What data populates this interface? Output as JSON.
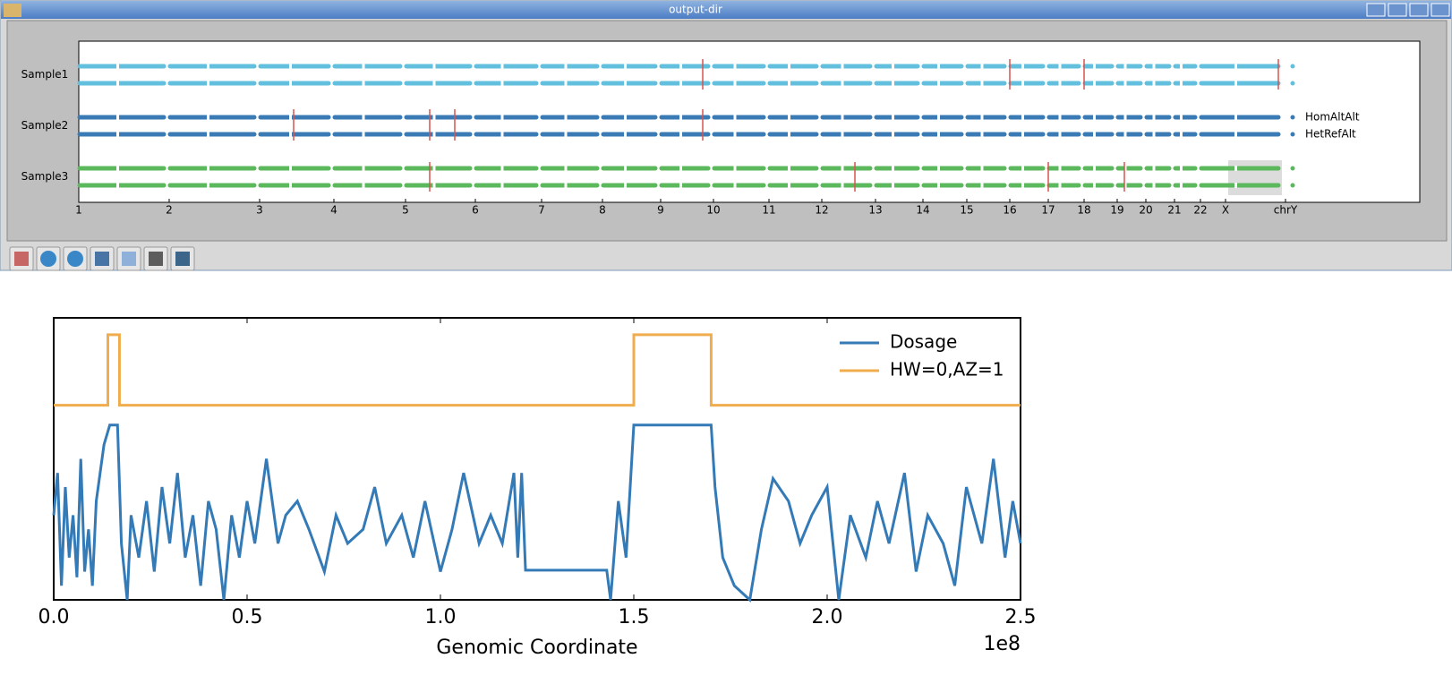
{
  "window": {
    "title": "output-dir"
  },
  "genome_plot": {
    "samples": [
      "Sample1",
      "Sample2",
      "Sample3"
    ],
    "legend": [
      "HomAltAlt",
      "HetRefAlt"
    ],
    "chromosomes": [
      "1",
      "2",
      "3",
      "4",
      "5",
      "6",
      "7",
      "8",
      "9",
      "10",
      "11",
      "12",
      "13",
      "14",
      "15",
      "16",
      "17",
      "18",
      "19",
      "20",
      "21",
      "22",
      "X",
      "chrY"
    ]
  },
  "chart_data": {
    "type": "line",
    "xlabel": "Genomic Coordinate",
    "x_offset_label": "1e8",
    "xlim": [
      0,
      2.5
    ],
    "ylim": [
      0,
      1
    ],
    "xticks": [
      {
        "value": 0,
        "label": "0.0"
      },
      0.5,
      {
        "value": 1,
        "label": "1.0"
      },
      1.5,
      {
        "value": 2,
        "label": "2.0"
      },
      2.5
    ],
    "legend": "upper right",
    "series": [
      {
        "name": "Dosage",
        "color": "#337ab7",
        "x": [
          0,
          0.01,
          0.02,
          0.03,
          0.04,
          0.05,
          0.06,
          0.07,
          0.08,
          0.09,
          0.1,
          0.11,
          0.12,
          0.13,
          0.145,
          0.165,
          0.175,
          0.19,
          0.2,
          0.22,
          0.24,
          0.26,
          0.28,
          0.3,
          0.32,
          0.34,
          0.36,
          0.38,
          0.4,
          0.42,
          0.44,
          0.46,
          0.48,
          0.5,
          0.52,
          0.55,
          0.58,
          0.6,
          0.63,
          0.66,
          0.7,
          0.73,
          0.76,
          0.8,
          0.83,
          0.86,
          0.9,
          0.93,
          0.96,
          1.0,
          1.03,
          1.06,
          1.1,
          1.13,
          1.16,
          1.19,
          1.2,
          1.21,
          1.22,
          1.43,
          1.44,
          1.46,
          1.48,
          1.5,
          1.7,
          1.71,
          1.73,
          1.76,
          1.8,
          1.83,
          1.86,
          1.9,
          1.93,
          1.96,
          2.0,
          2.03,
          2.06,
          2.1,
          2.13,
          2.16,
          2.2,
          2.23,
          2.26,
          2.3,
          2.33,
          2.36,
          2.4,
          2.43,
          2.46,
          2.48,
          2.5
        ],
        "values": [
          0.3,
          0.45,
          0.05,
          0.4,
          0.15,
          0.3,
          0.08,
          0.5,
          0.1,
          0.25,
          0.05,
          0.35,
          0.45,
          0.55,
          0.62,
          0.62,
          0.2,
          0.0,
          0.3,
          0.15,
          0.35,
          0.1,
          0.4,
          0.2,
          0.45,
          0.15,
          0.3,
          0.05,
          0.35,
          0.25,
          0.0,
          0.3,
          0.15,
          0.35,
          0.2,
          0.5,
          0.2,
          0.3,
          0.35,
          0.25,
          0.1,
          0.3,
          0.2,
          0.25,
          0.4,
          0.2,
          0.3,
          0.15,
          0.35,
          0.1,
          0.25,
          0.45,
          0.2,
          0.3,
          0.2,
          0.45,
          0.15,
          0.45,
          0.105,
          0.105,
          0.0,
          0.35,
          0.15,
          0.62,
          0.62,
          0.4,
          0.15,
          0.05,
          0.0,
          0.25,
          0.43,
          0.35,
          0.2,
          0.3,
          0.4,
          0.0,
          0.3,
          0.15,
          0.35,
          0.2,
          0.45,
          0.1,
          0.3,
          0.2,
          0.05,
          0.4,
          0.2,
          0.5,
          0.15,
          0.35,
          0.2
        ]
      },
      {
        "name": "HW=0,AZ=1",
        "color": "#f0ad4e",
        "x": [
          0,
          0.14,
          0.14,
          0.17,
          0.17,
          1.5,
          1.5,
          1.7,
          1.7,
          2.5
        ],
        "values": [
          0.69,
          0.69,
          0.94,
          0.94,
          0.69,
          0.69,
          0.94,
          0.94,
          0.69,
          0.69
        ]
      }
    ]
  }
}
